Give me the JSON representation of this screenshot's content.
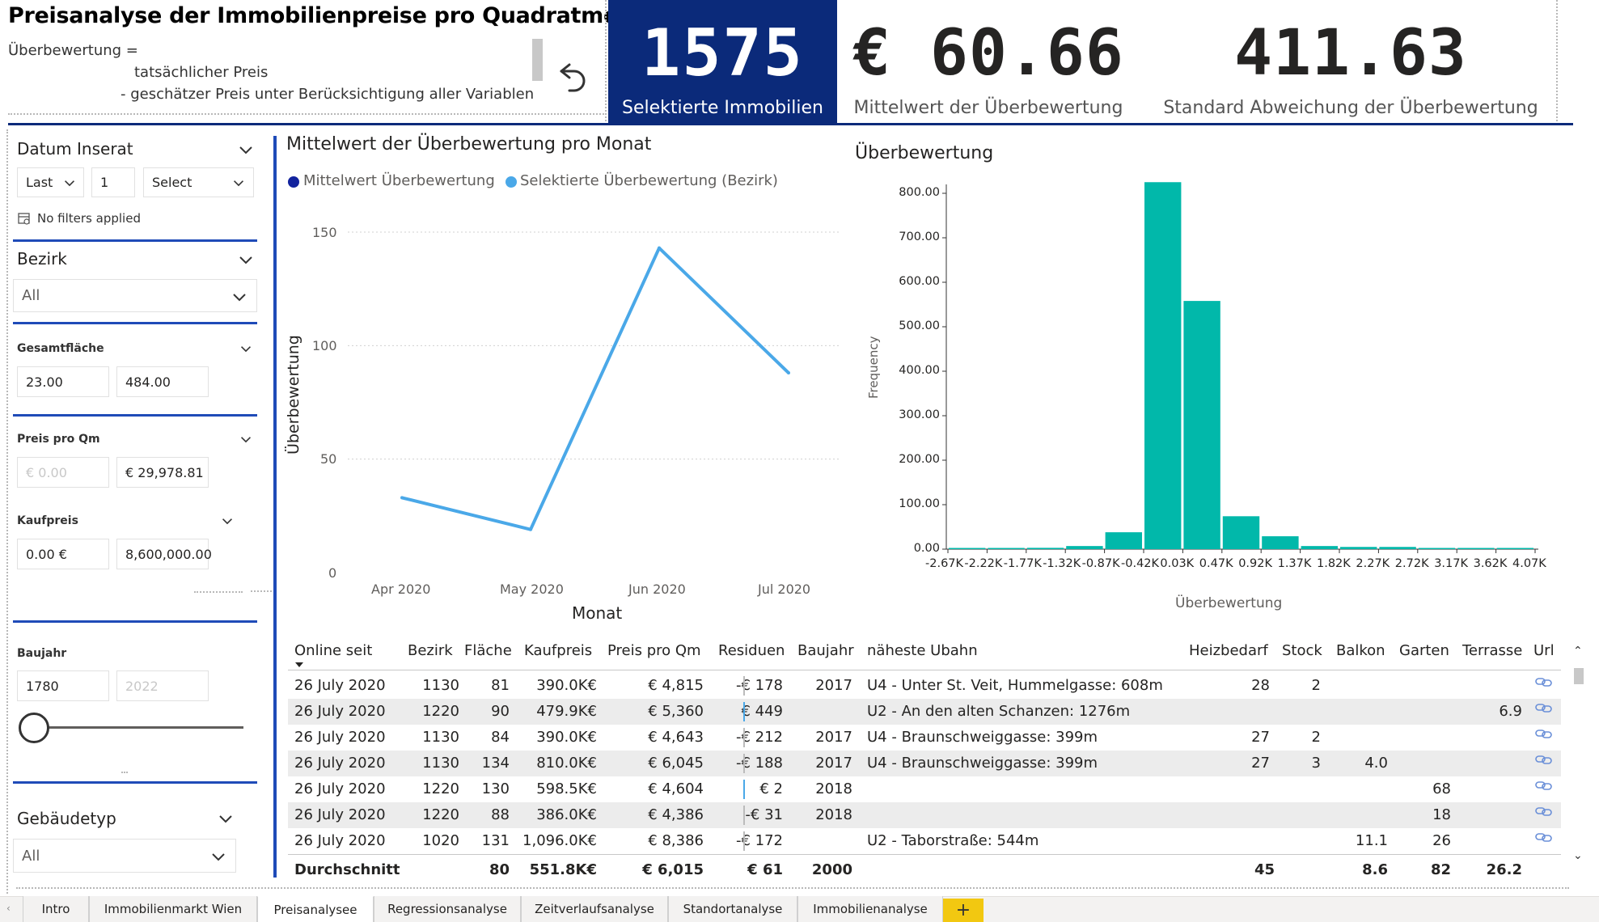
{
  "header": {
    "title": "Preisanalyse der Immobilienpreise pro Quadratmeter",
    "formula_line1": "Überbewertung =",
    "formula_line2": "tatsächlicher Preis",
    "formula_line3": "- geschätzer Preis unter Berücksichtigung aller Variablen"
  },
  "kpis": {
    "selected": {
      "value": "1575",
      "label": "Selektierte Immobilien"
    },
    "mean": {
      "value": "€ 60.66",
      "label": "Mittelwert der Überbewertung"
    },
    "std": {
      "value": "411.63",
      "label": "Standard Abweichung der Überbewertung"
    },
    "box_color": "#0b2a7a"
  },
  "filters": {
    "datum": {
      "title": "Datum Inserat",
      "mode": "Last",
      "count": "1",
      "unit": "Select",
      "status": "No filters applied"
    },
    "bezirk": {
      "title": "Bezirk",
      "value": "All"
    },
    "flaeche": {
      "title": "Gesamtfläche",
      "min": "23.00",
      "max": "484.00"
    },
    "preis_qm": {
      "title": "Preis pro Qm",
      "min": "€ 0.00",
      "max": "€ 29,978.81"
    },
    "kaufpreis": {
      "title": "Kaufpreis",
      "min": "0.00 €",
      "max": "8,600,000.00"
    },
    "baujahr": {
      "title": "Baujahr",
      "min": "1780",
      "max": "2022",
      "slider_fraction": 0.0
    },
    "gebaeudetyp": {
      "title": "Gebäudetyp",
      "value": "All"
    }
  },
  "line_chart": {
    "title": "Mittelwert der Überbewertung pro Monat",
    "legend": [
      {
        "label": "Mittelwert Überbewertung",
        "color": "#12239e"
      },
      {
        "label": "Selektierte Überbewertung (Bezirk)",
        "color": "#4aa8e8"
      }
    ],
    "yticks": [
      "150",
      "100",
      "50",
      "0"
    ],
    "xlabel": "Monat",
    "ylabel": "Überbewertung"
  },
  "histogram": {
    "title": "Überbewertung",
    "ylabel": "Frequency",
    "xlabel": "Überbewertung",
    "color": "#01b8aa",
    "yticks": [
      "800.00",
      "700.00",
      "600.00",
      "500.00",
      "400.00",
      "300.00",
      "200.00",
      "100.00",
      "0.00"
    ],
    "xticks": [
      "-2.67K",
      "-2.22K",
      "-1.77K",
      "-1.32K",
      "-0.87K",
      "-0.42K",
      "0.03K",
      "0.47K",
      "0.92K",
      "1.37K",
      "1.82K",
      "2.27K",
      "2.72K",
      "3.17K",
      "3.62K",
      "4.07K"
    ]
  },
  "chart_data": [
    {
      "type": "line",
      "title": "Mittelwert der Überbewertung pro Monat",
      "xlabel": "Monat",
      "ylabel": "Überbewertung",
      "categories": [
        "Apr 2020",
        "May 2020",
        "Jun 2020",
        "Jul 2020"
      ],
      "ylim": [
        0,
        150
      ],
      "grid": true,
      "legend_position": "top-left",
      "series": [
        {
          "name": "Selektierte Überbewertung (Bezirk)",
          "values": [
            33,
            19,
            143,
            88
          ],
          "color": "#4aa8e8"
        }
      ]
    },
    {
      "type": "bar",
      "title": "Überbewertung",
      "xlabel": "Überbewertung",
      "ylabel": "Frequency",
      "categories": [
        "-2.67K",
        "-2.22K",
        "-1.77K",
        "-1.32K",
        "-0.87K",
        "-0.42K",
        "0.03K",
        "0.47K",
        "0.92K",
        "1.37K",
        "1.82K",
        "2.27K",
        "2.72K",
        "3.17K",
        "3.62K"
      ],
      "values": [
        1,
        2,
        3,
        7,
        38,
        825,
        558,
        74,
        29,
        7,
        5,
        5,
        2,
        1,
        1
      ],
      "ylim": [
        0,
        820
      ],
      "grid": false
    }
  ],
  "table": {
    "headers": [
      "Online seit",
      "Bezirk",
      "Fläche",
      "Kaufpreis",
      "Preis pro Qm",
      "Residuen",
      "Baujahr",
      "näheste Ubahn",
      "Heizbedarf",
      "Stock",
      "Balkon",
      "Garten",
      "Terrasse",
      "Url"
    ],
    "rows": [
      {
        "online": "26 July 2020",
        "bezirk": "1130",
        "flaeche": "81",
        "kaufpreis": "390.0K€",
        "preis_qm": "€ 4,815",
        "residuen": "-€ 178",
        "baujahr": "2017",
        "ubahn": "U4 - Unter St. Veit, Hummelgasse: 608m",
        "heiz": "28",
        "stock": "2",
        "balkon": "",
        "garten": "",
        "terrasse": ""
      },
      {
        "online": "26 July 2020",
        "bezirk": "1220",
        "flaeche": "90",
        "kaufpreis": "479.9K€",
        "preis_qm": "€ 5,360",
        "residuen": "€ 449",
        "baujahr": "",
        "ubahn": "U2 - An den alten Schanzen: 1276m",
        "heiz": "",
        "stock": "",
        "balkon": "",
        "garten": "",
        "terrasse": "6.9"
      },
      {
        "online": "26 July 2020",
        "bezirk": "1130",
        "flaeche": "84",
        "kaufpreis": "390.0K€",
        "preis_qm": "€ 4,643",
        "residuen": "-€ 212",
        "baujahr": "2017",
        "ubahn": "U4 - Braunschweiggasse: 399m",
        "heiz": "27",
        "stock": "2",
        "balkon": "",
        "garten": "",
        "terrasse": ""
      },
      {
        "online": "26 July 2020",
        "bezirk": "1130",
        "flaeche": "134",
        "kaufpreis": "810.0K€",
        "preis_qm": "€ 6,045",
        "residuen": "-€ 188",
        "baujahr": "2017",
        "ubahn": "U4 - Braunschweiggasse: 399m",
        "heiz": "27",
        "stock": "3",
        "balkon": "4.0",
        "garten": "",
        "terrasse": ""
      },
      {
        "online": "26 July 2020",
        "bezirk": "1220",
        "flaeche": "130",
        "kaufpreis": "598.5K€",
        "preis_qm": "€ 4,604",
        "residuen": "€ 2",
        "baujahr": "2018",
        "ubahn": "",
        "heiz": "",
        "stock": "",
        "balkon": "",
        "garten": "68",
        "terrasse": ""
      },
      {
        "online": "26 July 2020",
        "bezirk": "1220",
        "flaeche": "88",
        "kaufpreis": "386.0K€",
        "preis_qm": "€ 4,386",
        "residuen": "-€ 31",
        "baujahr": "2018",
        "ubahn": "",
        "heiz": "",
        "stock": "",
        "balkon": "",
        "garten": "18",
        "terrasse": ""
      },
      {
        "online": "26 July 2020",
        "bezirk": "1020",
        "flaeche": "131",
        "kaufpreis": "1,096.0K€",
        "preis_qm": "€ 8,386",
        "residuen": "-€ 172",
        "baujahr": "",
        "ubahn": "U2 - Taborstraße: 544m",
        "heiz": "",
        "stock": "",
        "balkon": "11.1",
        "garten": "26",
        "terrasse": ""
      }
    ],
    "total": {
      "label": "Durchschnitt",
      "flaeche": "80",
      "kaufpreis": "551.8K€",
      "preis_qm": "€ 6,015",
      "residuen": "€ 61",
      "baujahr": "2000",
      "heiz": "45",
      "balkon": "8.6",
      "garten": "82",
      "terrasse": "26.2"
    }
  },
  "tabs": [
    {
      "label": "Intro"
    },
    {
      "label": "Immobilienmarkt Wien"
    },
    {
      "label": "Preisanalysee",
      "active": true
    },
    {
      "label": "Regressionsanalyse"
    },
    {
      "label": "Zeitverlaufsanalyse"
    },
    {
      "label": "Standortanalyse"
    },
    {
      "label": "Immobilienanalyse"
    }
  ],
  "tab_add": "+"
}
